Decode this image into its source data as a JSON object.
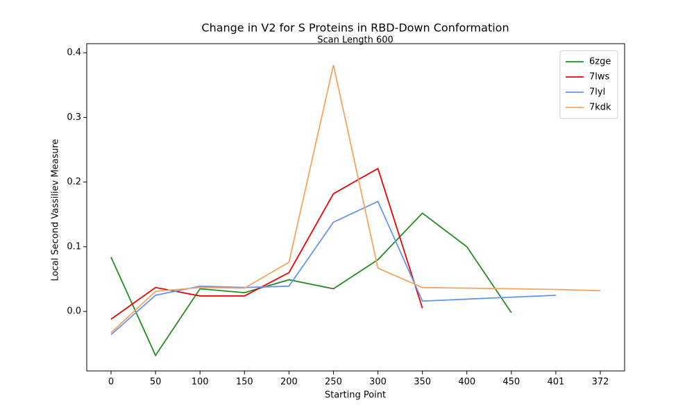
{
  "chart_data": {
    "type": "line",
    "title": "Change in V2 for S Proteins in RBD-Down Conformation",
    "subtitle": "Scan Length 600",
    "xlabel": "Starting Point",
    "ylabel": "Local Second Vassiliev Measure",
    "categories": [
      "0",
      "50",
      "100",
      "150",
      "200",
      "250",
      "300",
      "350",
      "400",
      "450",
      "401",
      "372"
    ],
    "series": [
      {
        "name": "6zge",
        "color": "#228b22",
        "values": [
          0.084,
          -0.068,
          0.035,
          0.029,
          0.049,
          0.035,
          0.08,
          0.152,
          0.1,
          -0.002,
          null,
          null
        ]
      },
      {
        "name": "7lws",
        "color": "#ee0000",
        "values": [
          -0.012,
          0.037,
          0.024,
          0.024,
          0.06,
          0.182,
          0.221,
          0.005,
          null,
          null,
          null,
          null
        ]
      },
      {
        "name": "7lyl",
        "color": "#6495ed",
        "values": [
          -0.036,
          0.025,
          0.039,
          0.037,
          0.039,
          0.138,
          0.17,
          0.016,
          0.019,
          0.022,
          0.025,
          null
        ]
      },
      {
        "name": "7kdk",
        "color": "#f4a460",
        "values": [
          -0.033,
          0.031,
          0.037,
          0.036,
          0.076,
          0.381,
          0.067,
          0.037,
          0.036,
          0.035,
          0.034,
          0.032
        ]
      }
    ],
    "ylim": [
      -0.092,
      0.414
    ],
    "yticks": [
      {
        "value": 0,
        "label": "0.0"
      },
      0.1,
      0.2,
      0.3,
      0.4
    ],
    "legend": "upper right"
  }
}
